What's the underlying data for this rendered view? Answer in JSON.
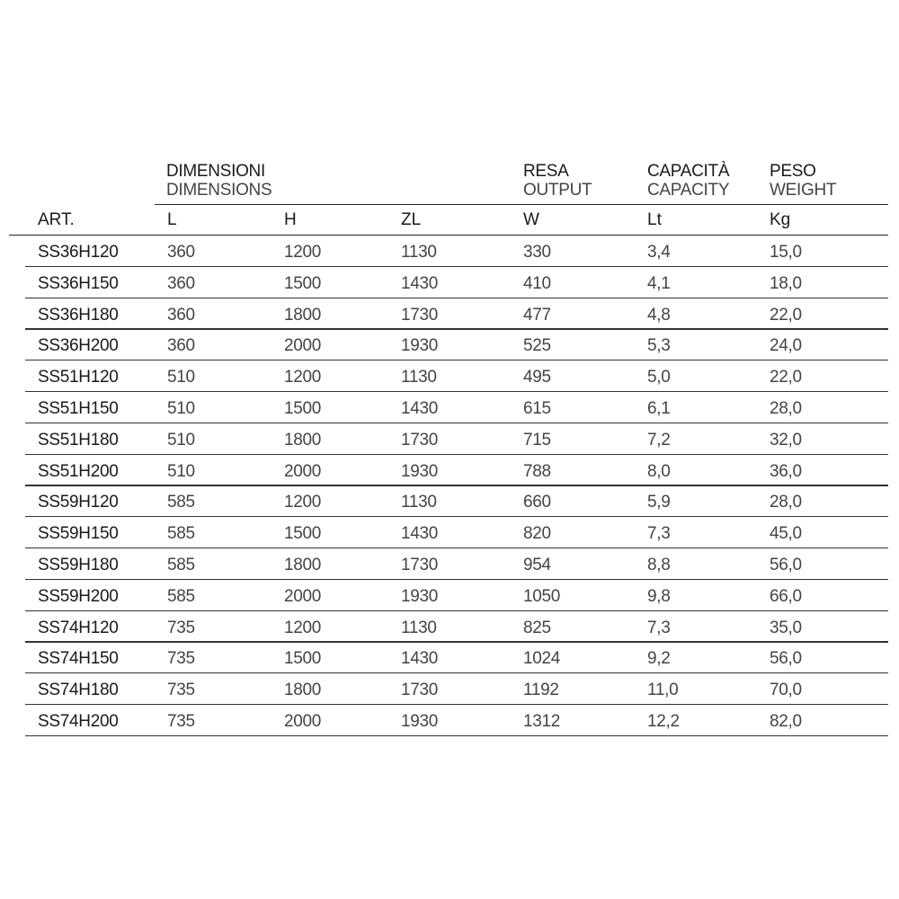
{
  "header": {
    "dimensions": {
      "it": "DIMENSIONI",
      "en": "DIMENSIONS"
    },
    "output": {
      "it": "RESA",
      "en": "OUTPUT"
    },
    "capacity": {
      "it": "CAPACITÀ",
      "en": "CAPACITY"
    },
    "weight": {
      "it": "PESO",
      "en": "WEIGHT"
    }
  },
  "columns": [
    "ART.",
    "L",
    "H",
    "ZL",
    "W",
    "Lt",
    "Kg"
  ],
  "rows": [
    [
      "SS36H120",
      "360",
      "1200",
      "1130",
      "330",
      "3,4",
      "15,0"
    ],
    [
      "SS36H150",
      "360",
      "1500",
      "1430",
      "410",
      "4,1",
      "18,0"
    ],
    [
      "SS36H180",
      "360",
      "1800",
      "1730",
      "477",
      "4,8",
      "22,0"
    ],
    [
      "SS36H200",
      "360",
      "2000",
      "1930",
      "525",
      "5,3",
      "24,0"
    ],
    [
      "SS51H120",
      "510",
      "1200",
      "1130",
      "495",
      "5,0",
      "22,0"
    ],
    [
      "SS51H150",
      "510",
      "1500",
      "1430",
      "615",
      "6,1",
      "28,0"
    ],
    [
      "SS51H180",
      "510",
      "1800",
      "1730",
      "715",
      "7,2",
      "32,0"
    ],
    [
      "SS51H200",
      "510",
      "2000",
      "1930",
      "788",
      "8,0",
      "36,0"
    ],
    [
      "SS59H120",
      "585",
      "1200",
      "1130",
      "660",
      "5,9",
      "28,0"
    ],
    [
      "SS59H150",
      "585",
      "1500",
      "1430",
      "820",
      "7,3",
      "45,0"
    ],
    [
      "SS59H180",
      "585",
      "1800",
      "1730",
      "954",
      "8,8",
      "56,0"
    ],
    [
      "SS59H200",
      "585",
      "2000",
      "1930",
      "1050",
      "9,8",
      "66,0"
    ],
    [
      "SS74H120",
      "735",
      "1200",
      "1130",
      "825",
      "7,3",
      "35,0"
    ],
    [
      "SS74H150",
      "735",
      "1500",
      "1430",
      "1024",
      "9,2",
      "56,0"
    ],
    [
      "SS74H180",
      "735",
      "1800",
      "1730",
      "1192",
      "11,0",
      "70,0"
    ],
    [
      "SS74H200",
      "735",
      "2000",
      "1930",
      "1312",
      "12,2",
      "82,0"
    ]
  ]
}
